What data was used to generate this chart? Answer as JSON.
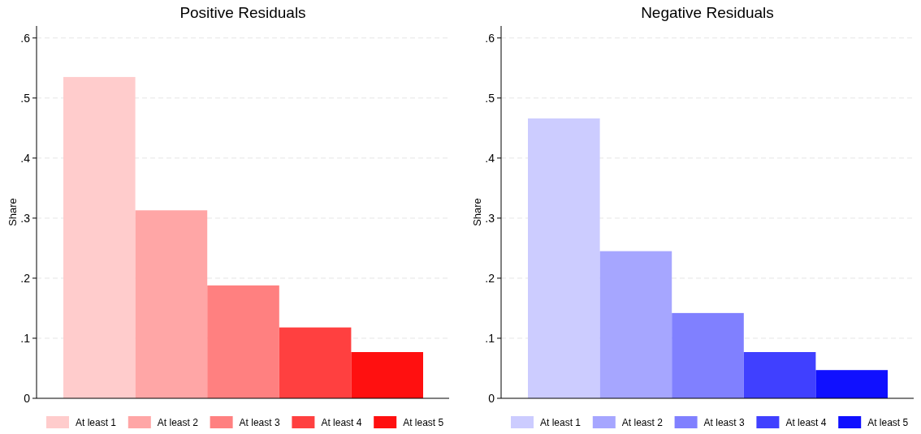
{
  "chart_data": [
    {
      "type": "bar",
      "title": "Positive Residuals",
      "ylabel": "Share",
      "categories": [
        null,
        null,
        null,
        null,
        null
      ],
      "series": [
        {
          "name": "At least 1",
          "color": "#ffcccc",
          "values": [
            0.535,
            null,
            null,
            null,
            null
          ]
        },
        {
          "name": "At least 2",
          "color": "#ffa6a6",
          "values": [
            null,
            0.313,
            null,
            null,
            null
          ]
        },
        {
          "name": "At least 3",
          "color": "#ff8080",
          "values": [
            null,
            null,
            0.188,
            null,
            null
          ]
        },
        {
          "name": "At least 4",
          "color": "#ff4040",
          "values": [
            null,
            null,
            null,
            0.118,
            null
          ]
        },
        {
          "name": "At least 5",
          "color": "#ff1010",
          "values": [
            null,
            null,
            null,
            null,
            0.077
          ]
        }
      ],
      "ylim": [
        0,
        0.62
      ],
      "yticks": [
        0,
        {
          "value": 0.1,
          "label": ".1"
        },
        {
          "value": 0.2,
          "label": ".2"
        },
        {
          "value": 0.3,
          "label": ".3"
        },
        {
          "value": 0.4,
          "label": ".4"
        },
        {
          "value": 0.5,
          "label": ".5"
        },
        {
          "value": 0.6,
          "label": ".6"
        }
      ],
      "grid": "y",
      "legend": "bottom"
    },
    {
      "type": "bar",
      "title": "Negative Residuals",
      "ylabel": "Share",
      "categories": [
        null,
        null,
        null,
        null,
        null
      ],
      "series": [
        {
          "name": "At least 1",
          "color": "#ccccff",
          "values": [
            0.466,
            null,
            null,
            null,
            null
          ]
        },
        {
          "name": "At least 2",
          "color": "#a6a6ff",
          "values": [
            null,
            0.245,
            null,
            null,
            null
          ]
        },
        {
          "name": "At least 3",
          "color": "#8080ff",
          "values": [
            null,
            null,
            0.142,
            null,
            null
          ]
        },
        {
          "name": "At least 4",
          "color": "#4040ff",
          "values": [
            null,
            null,
            null,
            0.077,
            null
          ]
        },
        {
          "name": "At least 5",
          "color": "#1010ff",
          "values": [
            null,
            null,
            null,
            null,
            0.047
          ]
        }
      ],
      "ylim": [
        0,
        0.62
      ],
      "yticks": [
        0,
        {
          "value": 0.1,
          "label": ".1"
        },
        {
          "value": 0.2,
          "label": ".2"
        },
        {
          "value": 0.3,
          "label": ".3"
        },
        {
          "value": 0.4,
          "label": ".4"
        },
        {
          "value": 0.5,
          "label": ".5"
        },
        {
          "value": 0.6,
          "label": ".6"
        }
      ],
      "grid": "y",
      "legend": "bottom"
    }
  ]
}
